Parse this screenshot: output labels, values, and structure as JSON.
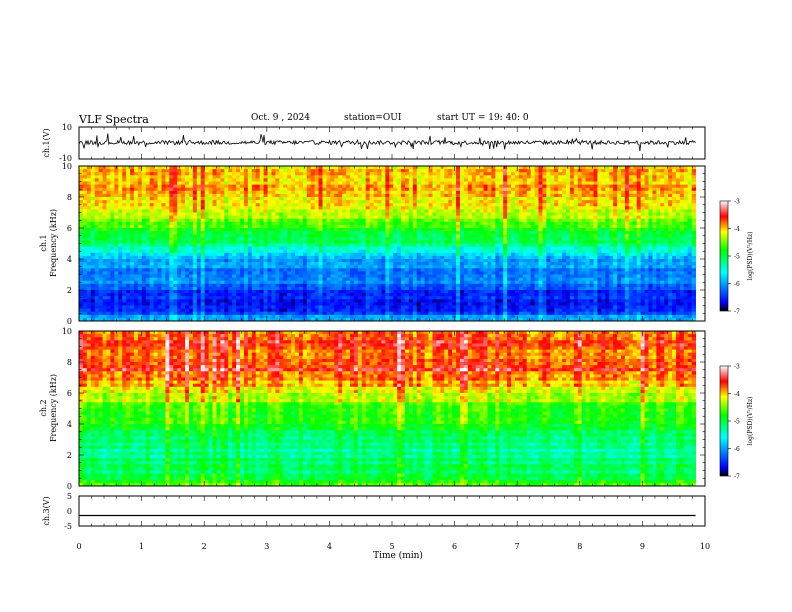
{
  "header": {
    "title": "VLF Spectra",
    "date": "Oct. 9 , 2024",
    "station": "station=OUI",
    "start_ut": "start UT =  19: 40: 0"
  },
  "chart_data": [
    {
      "type": "line",
      "panel": "ch1-waveform",
      "ylabel": "ch.1(V)",
      "xlim": [
        0,
        10
      ],
      "ylim": [
        -10,
        10
      ],
      "yticks": [
        "10",
        "-10"
      ],
      "level": 0.3,
      "description_values_note": ""
    },
    {
      "type": "heatmap",
      "panel": "ch1-spectrogram",
      "ylabel_top": "ch.1",
      "ylabel": "Frequency (kHz)",
      "xlim": [
        0,
        10
      ],
      "ylim": [
        0,
        10
      ],
      "yticks": [
        "0",
        "2",
        "4",
        "6",
        "8",
        "10"
      ],
      "data_end_min": 9.85,
      "profile_freq_khz": [
        0,
        0.5,
        1,
        1.5,
        2,
        2.5,
        3,
        3.5,
        4,
        4.5,
        5,
        5.5,
        6,
        6.5,
        7,
        7.5,
        8,
        8.5,
        9,
        9.5,
        10
      ],
      "profile_log_psd": [
        -5.8,
        -6.4,
        -6.6,
        -6.5,
        -6.4,
        -6.2,
        -6.3,
        -6.1,
        -5.9,
        -5.5,
        -5.2,
        -5.0,
        -4.7,
        -4.5,
        -4.3,
        -4.2,
        -4.1,
        -4.0,
        -4.0,
        -4.0,
        -4.0
      ]
    },
    {
      "type": "heatmap",
      "panel": "ch2-spectrogram",
      "ylabel_top": "ch.2",
      "ylabel": "Frequency (kHz)",
      "xlim": [
        0,
        10
      ],
      "ylim": [
        0,
        10
      ],
      "yticks": [
        "0",
        "2",
        "4",
        "6",
        "8",
        "10"
      ],
      "data_end_min": 9.85,
      "profile_freq_khz": [
        0,
        0.5,
        1,
        1.5,
        2,
        2.5,
        3,
        3.5,
        4,
        4.5,
        5,
        5.5,
        6,
        6.5,
        7,
        7.5,
        8,
        8.5,
        9,
        9.5,
        10
      ],
      "profile_log_psd": [
        -4.5,
        -5.0,
        -5.2,
        -5.1,
        -5.3,
        -5.2,
        -5.2,
        -5.0,
        -4.8,
        -4.9,
        -4.7,
        -4.4,
        -4.2,
        -4.0,
        -3.8,
        -3.6,
        -3.8,
        -3.8,
        -3.7,
        -3.7,
        -3.7
      ]
    },
    {
      "type": "line",
      "panel": "ch3-waveform",
      "ylabel": "ch.3(V)",
      "xlim": [
        0,
        10
      ],
      "ylim": [
        -5,
        5
      ],
      "yticks": [
        "5",
        "0",
        "-5"
      ],
      "level": -1.5
    }
  ],
  "colorbar": {
    "label": "log(PSD)(V²/Hz)",
    "range": [
      -7,
      -3
    ],
    "ticks": [
      "-3",
      "-4",
      "-5",
      "-6",
      "-7"
    ]
  },
  "xaxis": {
    "label": "Time (min)",
    "ticks": [
      "0",
      "1",
      "2",
      "3",
      "4",
      "5",
      "6",
      "7",
      "8",
      "9",
      "10"
    ]
  }
}
